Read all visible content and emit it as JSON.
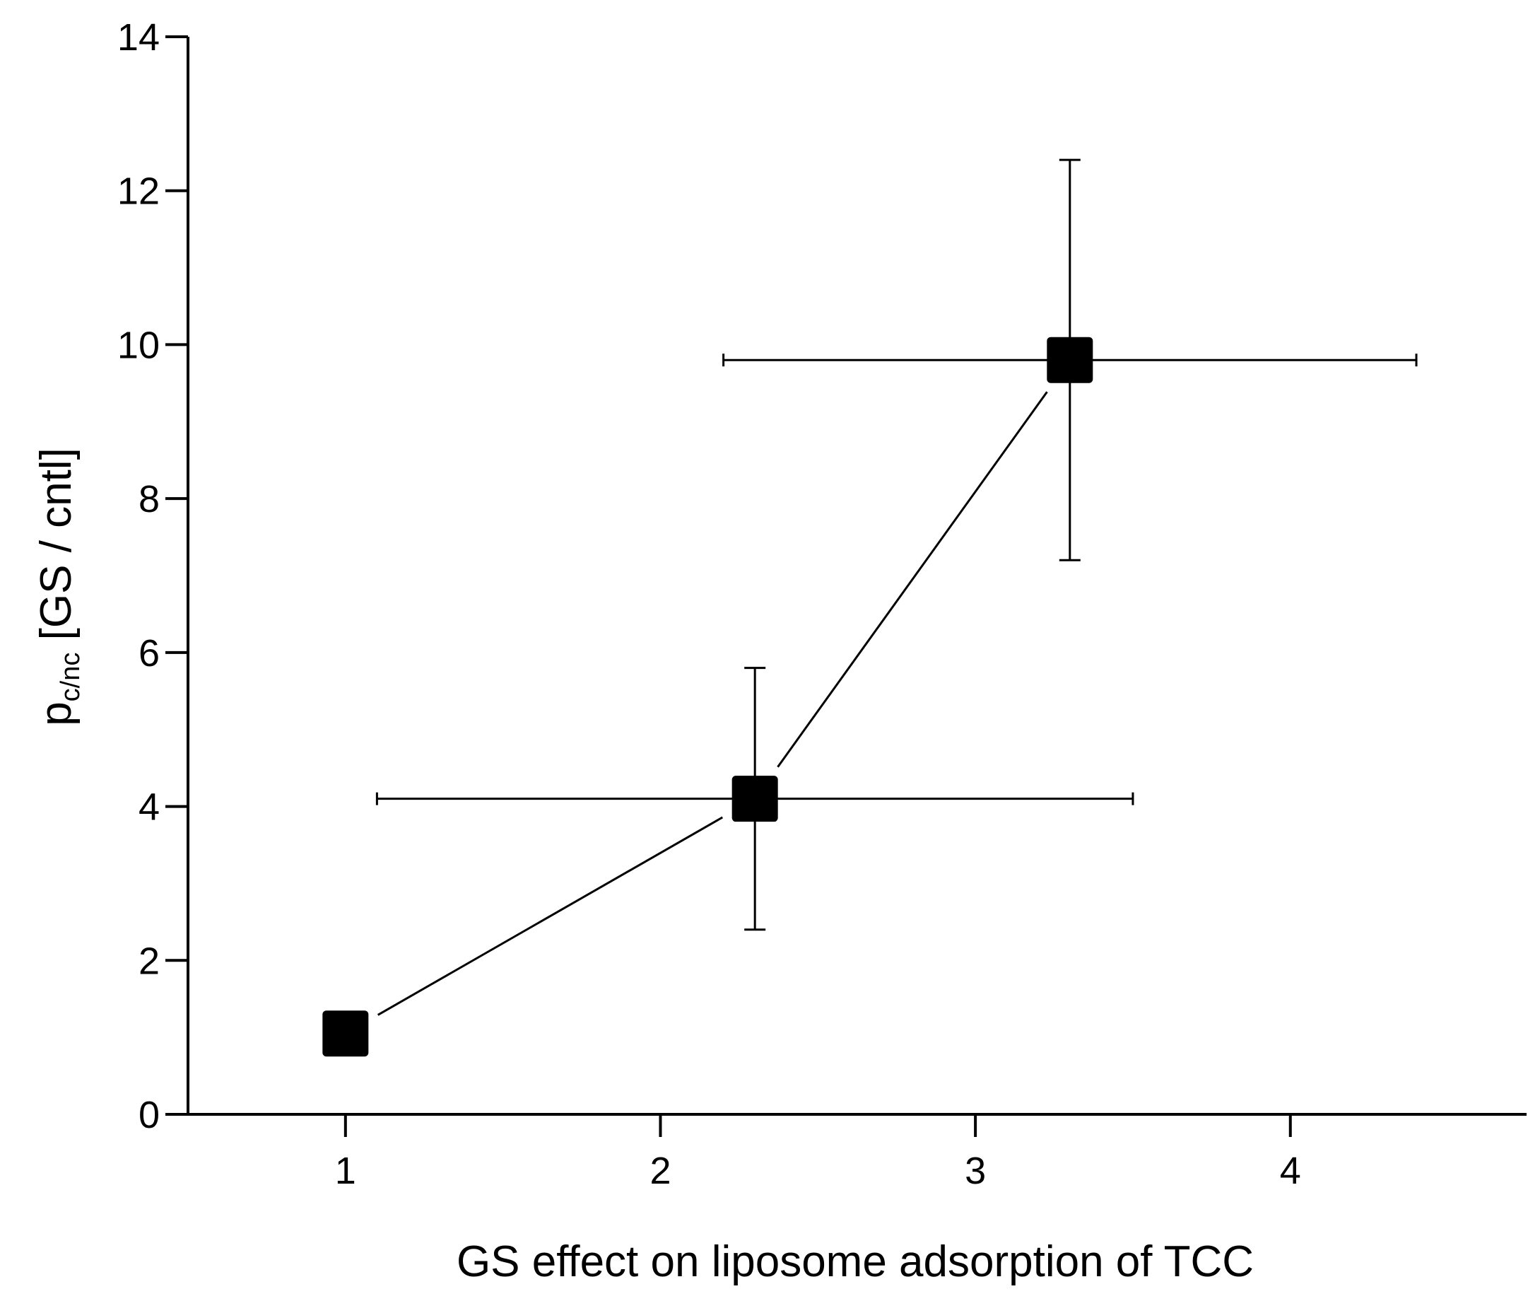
{
  "chart_data": {
    "type": "scatter",
    "title": "",
    "xlabel": "GS effect on liposome adsorption of TCC",
    "ylabel": {
      "main": "p",
      "subscript": "c/nc",
      "suffix": " [GS / cntl]"
    },
    "xlim": [
      0.5,
      4.75
    ],
    "ylim": [
      0,
      14
    ],
    "x_ticks": [
      1,
      2,
      3,
      4
    ],
    "y_ticks": [
      0,
      2,
      4,
      6,
      8,
      10,
      12,
      14
    ],
    "grid": false,
    "legend": "none",
    "series": [
      {
        "name": "GS / cntl",
        "marker": "square",
        "connected": true,
        "points": [
          {
            "x": 1.0,
            "y": 1.05
          },
          {
            "x": 2.3,
            "y": 4.1,
            "x_err_low": 1.1,
            "x_err_high": 3.5,
            "y_err_low": 2.4,
            "y_err_high": 5.8
          },
          {
            "x": 3.3,
            "y": 9.8,
            "x_err_low": 2.2,
            "x_err_high": 4.4,
            "y_err_low": 7.2,
            "y_err_high": 12.4
          }
        ]
      }
    ]
  }
}
